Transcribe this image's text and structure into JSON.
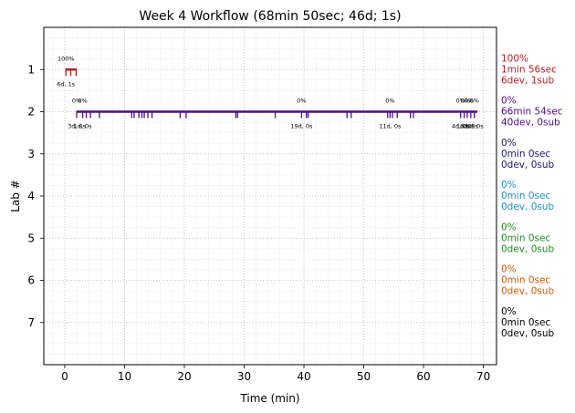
{
  "chart_data": {
    "type": "timeline",
    "title": "Week 4 Workflow (68min 50sec; 46d; 1s)",
    "xlabel": "Time (min)",
    "ylabel": "Lab #",
    "xlim": [
      -3.5,
      72.2
    ],
    "ylim": [
      8,
      0
    ],
    "xticks": [
      0,
      10,
      20,
      30,
      40,
      50,
      60,
      70
    ],
    "yticks": [
      1,
      2,
      3,
      4,
      5,
      6,
      7
    ],
    "grid": true,
    "labs": [
      {
        "lab": 1,
        "color": "#b22222",
        "bar": [
          0.1,
          2.0
        ],
        "commits": [
          0.2,
          1.0,
          1.9
        ],
        "pct_labels": [
          {
            "x": 0.2,
            "text": "100%"
          }
        ],
        "count_labels": [
          {
            "x": 0.2,
            "text": "6d, 1s"
          }
        ],
        "summary": [
          "100%",
          "1min 56sec",
          "6dev, 1sub"
        ]
      },
      {
        "lab": 2,
        "color": "#4b0d8b",
        "bar": [
          2.0,
          69.0
        ],
        "commits": [
          2.0,
          3.0,
          3.6,
          4.3,
          5.8,
          11.2,
          11.6,
          12.4,
          12.9,
          13.3,
          13.9,
          14.6,
          19.3,
          20.3,
          28.6,
          28.9,
          35.2,
          39.6,
          40.4,
          40.7,
          47.2,
          47.9,
          54.0,
          54.4,
          54.8,
          55.6,
          57.8,
          58.3,
          66.2,
          66.8,
          67.3,
          67.9,
          68.5
        ],
        "pct_labels": [
          {
            "x": 2.0,
            "text": "0%"
          },
          {
            "x": 3.0,
            "text": "0%"
          },
          {
            "x": 39.6,
            "text": "0%"
          },
          {
            "x": 54.4,
            "text": "0%"
          },
          {
            "x": 66.2,
            "text": "0%"
          },
          {
            "x": 67.0,
            "text": "0%"
          },
          {
            "x": 67.6,
            "text": "0%"
          },
          {
            "x": 68.5,
            "text": "0%"
          }
        ],
        "count_labels": [
          {
            "x": 2.0,
            "text": "3d, 0s"
          },
          {
            "x": 3.0,
            "text": "1d, 0s"
          },
          {
            "x": 39.6,
            "text": "19d, 0s"
          },
          {
            "x": 54.4,
            "text": "11d, 0s"
          },
          {
            "x": 66.2,
            "text": "4d, 0s"
          },
          {
            "x": 67.0,
            "text": "1d, 0s"
          },
          {
            "x": 67.6,
            "text": "1d, 0s"
          },
          {
            "x": 68.5,
            "text": "1d, 0s"
          }
        ],
        "summary": [
          "0%",
          "66min 54sec",
          "40dev, 0sub"
        ]
      },
      {
        "lab": 3,
        "color": "#191970",
        "bar": null,
        "commits": [],
        "pct_labels": [],
        "count_labels": [],
        "summary": [
          "0%",
          "0min 0sec",
          "0dev, 0sub"
        ]
      },
      {
        "lab": 4,
        "color": "#1e90c8",
        "bar": null,
        "commits": [],
        "pct_labels": [],
        "count_labels": [],
        "summary": [
          "0%",
          "0min 0sec",
          "0dev, 0sub"
        ]
      },
      {
        "lab": 5,
        "color": "#228b22",
        "bar": null,
        "commits": [],
        "pct_labels": [],
        "count_labels": [],
        "summary": [
          "0%",
          "0min 0sec",
          "0dev, 0sub"
        ]
      },
      {
        "lab": 6,
        "color": "#d2580a",
        "bar": null,
        "commits": [],
        "pct_labels": [],
        "count_labels": [],
        "summary": [
          "0%",
          "0min 0sec",
          "0dev, 0sub"
        ]
      },
      {
        "lab": 7,
        "color": "#000000",
        "bar": null,
        "commits": [],
        "pct_labels": [],
        "count_labels": [],
        "summary": [
          "0%",
          "0min 0sec",
          "0dev, 0sub"
        ]
      }
    ]
  }
}
